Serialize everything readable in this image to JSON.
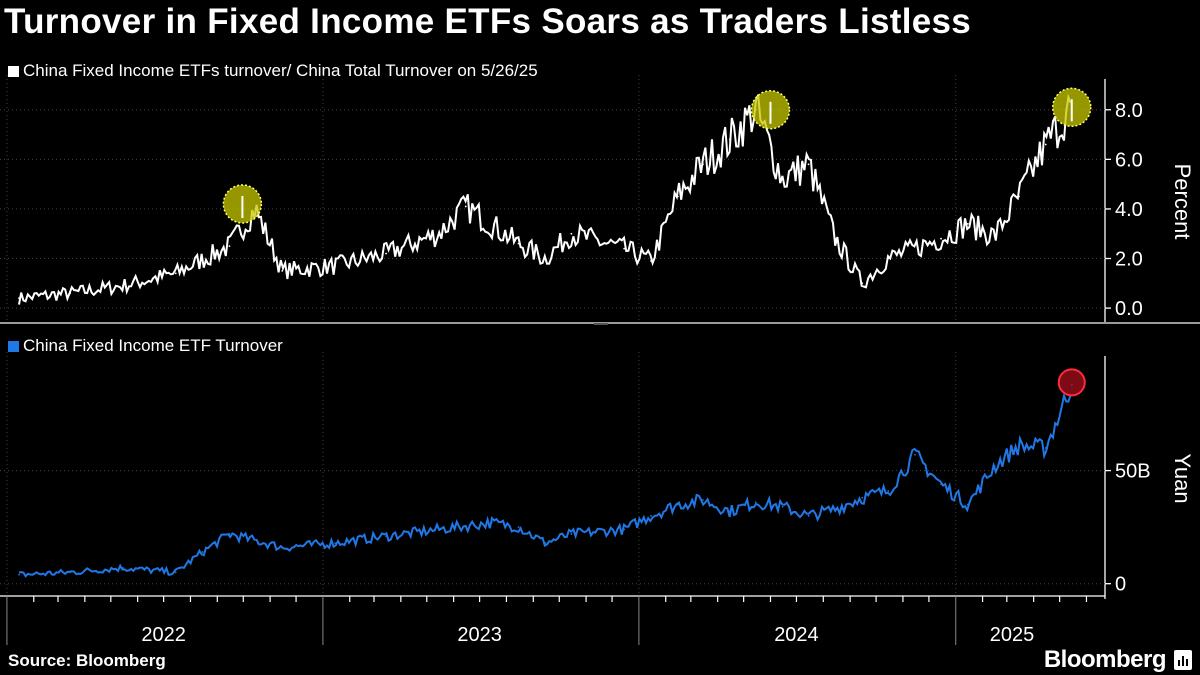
{
  "title": "Turnover in Fixed Income ETFs Soars as Traders Listless",
  "source": "Source: Bloomberg",
  "brand": "Bloomberg",
  "brand_icon": "bloomberg-chart-icon",
  "colors": {
    "background": "#000000",
    "top_line": "#ffffff",
    "bottom_line": "#1f78e6",
    "highlight_fill": "#c8c800",
    "highlight_edge": "#ffff66",
    "peak_ring": "#ff2a3c"
  },
  "chart_data": [
    {
      "type": "line",
      "legend": "China Fixed Income ETFs turnover/ China Total Turnover on 5/26/25",
      "ylabel": "Percent",
      "ylim": [
        -0.4,
        9.0
      ],
      "yticks": [
        0.0,
        2.0,
        4.0,
        6.0,
        8.0
      ],
      "ytick_labels": [
        "0.0",
        "2.0",
        "4.0",
        "6.0",
        "8.0"
      ],
      "x": [
        "2022-01",
        "2022-03",
        "2022-05",
        "2022-07",
        "2022-09",
        "2022-10",
        "2022-11",
        "2023-01",
        "2023-03",
        "2023-05",
        "2023-06",
        "2023-08",
        "2023-09",
        "2023-10",
        "2023-12",
        "2024-01",
        "2024-02",
        "2024-03",
        "2024-04",
        "2024-05",
        "2024-06",
        "2024-07",
        "2024-08",
        "2024-09",
        "2024-10",
        "2024-12",
        "2025-01",
        "2025-02",
        "2025-03",
        "2025-04",
        "2025-05"
      ],
      "values": [
        0.4,
        0.6,
        0.9,
        1.4,
        2.5,
        4.0,
        1.5,
        1.7,
        2.2,
        3.0,
        4.1,
        2.6,
        2.0,
        3.0,
        2.4,
        1.9,
        4.5,
        5.8,
        6.8,
        8.0,
        5.2,
        5.8,
        2.8,
        1.0,
        2.0,
        2.8,
        3.4,
        2.9,
        4.5,
        6.6,
        8.1
      ],
      "highlights": [
        {
          "x": "2022-09-30",
          "value": 4.2
        },
        {
          "x": "2024-06-01",
          "value": 8.0
        },
        {
          "x": "2025-05-15",
          "value": 8.1
        }
      ]
    },
    {
      "type": "line",
      "legend": "China Fixed Income ETF Turnover",
      "ylabel": "Yuan",
      "ylim": [
        -5,
        98
      ],
      "yticks": [
        0,
        50
      ],
      "ytick_labels": [
        "0",
        "50B"
      ],
      "x": [
        "2022-01",
        "2022-03",
        "2022-05",
        "2022-07",
        "2022-08",
        "2022-09",
        "2022-11",
        "2023-01",
        "2023-03",
        "2023-05",
        "2023-07",
        "2023-08",
        "2023-09",
        "2023-10",
        "2023-12",
        "2024-01",
        "2024-02",
        "2024-03",
        "2024-04",
        "2024-05",
        "2024-06",
        "2024-07",
        "2024-08",
        "2024-09",
        "2024-10",
        "2024-11",
        "2024-12",
        "2025-01",
        "2025-02",
        "2025-03",
        "2025-04",
        "2025-05"
      ],
      "values": [
        4,
        5,
        7,
        5,
        14,
        22,
        16,
        18,
        21,
        24,
        27,
        25,
        18,
        22,
        24,
        30,
        35,
        37,
        32,
        36,
        34,
        30,
        33,
        38,
        41,
        57,
        44,
        35,
        52,
        61,
        60,
        88
      ],
      "highlights": [
        {
          "x": "2025-05-15",
          "value": 89
        }
      ]
    }
  ],
  "x_axis": {
    "year_labels": [
      "2022",
      "2023",
      "2024",
      "2025"
    ]
  }
}
